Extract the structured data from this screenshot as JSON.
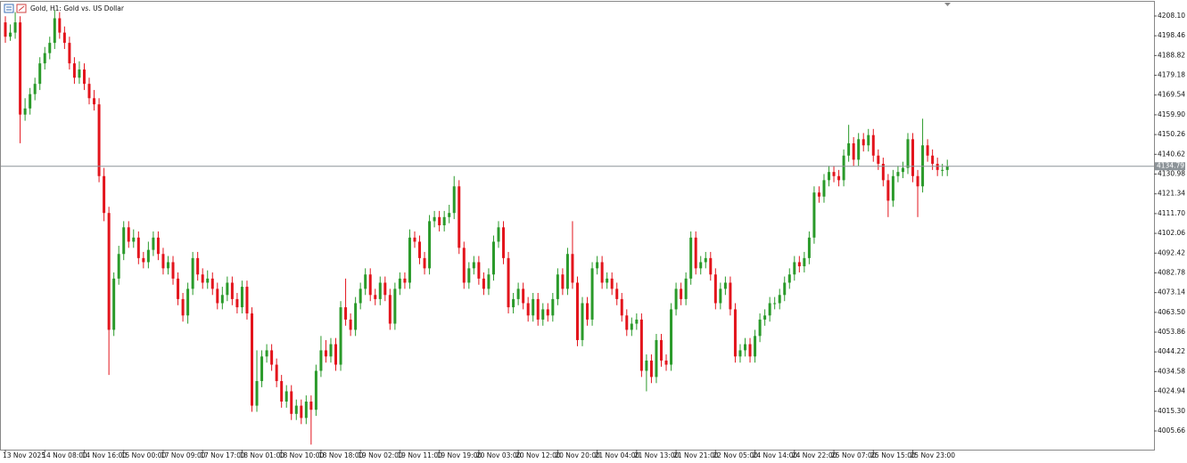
{
  "chart_data": {
    "type": "candlestick",
    "title": "Gold, H1:  Gold vs. US Dollar",
    "up_color": "#2a9a2a",
    "down_color": "#e3141c",
    "price_line_color": "#8c9398",
    "ylim": [
      3996.54,
      4215.04
    ],
    "yticks": [
      4005.66,
      {
        "value": 4015.3,
        "label": "4015.30"
      },
      4024.94,
      4034.58,
      4044.22,
      4053.86,
      {
        "value": 4063.5,
        "label": "4063.50"
      },
      4073.14,
      4082.78,
      4092.42,
      4102.06,
      {
        "value": 4111.7,
        "label": "4111.70"
      },
      4121.34,
      4130.98,
      4140.62,
      4150.26,
      {
        "value": 4159.9,
        "label": "4159.90"
      },
      4169.54,
      4179.18,
      4188.82,
      4198.46,
      {
        "value": 4208.1,
        "label": "4208.10"
      }
    ],
    "current_price": 4134.79,
    "categories": [
      "13 Nov 2025",
      null,
      null,
      null,
      null,
      null,
      null,
      null,
      "14 Nov 08:00",
      null,
      null,
      null,
      null,
      null,
      null,
      null,
      "14 Nov 16:00",
      null,
      null,
      null,
      null,
      null,
      null,
      null,
      "15 Nov 00:00",
      null,
      null,
      null,
      null,
      null,
      null,
      null,
      "17 Nov 09:00",
      null,
      null,
      null,
      null,
      null,
      null,
      null,
      "17 Nov 17:00",
      null,
      null,
      null,
      null,
      null,
      null,
      null,
      "18 Nov 01:00",
      null,
      null,
      null,
      null,
      null,
      null,
      null,
      "18 Nov 10:00",
      null,
      null,
      null,
      null,
      null,
      null,
      null,
      "18 Nov 18:00",
      null,
      null,
      null,
      null,
      null,
      null,
      null,
      "19 Nov 02:00",
      null,
      null,
      null,
      null,
      null,
      null,
      null,
      "19 Nov 11:00",
      null,
      null,
      null,
      null,
      null,
      null,
      null,
      "19 Nov 19:00",
      null,
      null,
      null,
      null,
      null,
      null,
      null,
      "20 Nov 03:00",
      null,
      null,
      null,
      null,
      null,
      null,
      null,
      "20 Nov 12:00",
      null,
      null,
      null,
      null,
      null,
      null,
      null,
      "20 Nov 20:00",
      null,
      null,
      null,
      null,
      null,
      null,
      null,
      "21 Nov 04:00",
      null,
      null,
      null,
      null,
      null,
      null,
      null,
      "21 Nov 13:00",
      null,
      null,
      null,
      null,
      null,
      null,
      null,
      "21 Nov 21:00",
      null,
      null,
      null,
      null,
      null,
      null,
      null,
      "22 Nov 05:00",
      null,
      null,
      null,
      null,
      null,
      null,
      null,
      "24 Nov 14:00",
      null,
      null,
      null,
      null,
      null,
      null,
      null,
      "24 Nov 22:00",
      null,
      null,
      null,
      null,
      null,
      null,
      null,
      "25 Nov 07:00",
      null,
      null,
      null,
      null,
      null,
      null,
      null,
      "25 Nov 15:00",
      null,
      null,
      null,
      null,
      null,
      null,
      null,
      "25 Nov 23:00",
      null,
      null,
      null,
      null,
      null,
      null,
      null
    ],
    "open": [
      4205,
      4198,
      4200,
      4205,
      4160,
      4163,
      4170,
      4175,
      4185,
      4190,
      4195,
      4207,
      4200,
      4195,
      4185,
      4178,
      4182,
      4175,
      4168,
      4165,
      4130,
      4112,
      4055,
      4080,
      4092,
      4105,
      4098,
      4100,
      4090,
      4088,
      4094,
      4100,
      4092,
      4085,
      4088,
      4080,
      4070,
      4062,
      4075,
      4090,
      4082,
      4078,
      4080,
      4075,
      4068,
      4072,
      4078,
      4070,
      4066,
      4076,
      4063,
      4018,
      4030,
      4042,
      4045,
      4038,
      4030,
      4020,
      4025,
      4014,
      4018,
      4012,
      4020,
      4016,
      4035,
      4045,
      4042,
      4048,
      4038,
      4066,
      4060,
      4055,
      4068,
      4075,
      4082,
      4072,
      4070,
      4078,
      4072,
      4058,
      4075,
      4080,
      4078,
      4100,
      4098,
      4090,
      4085,
      4108,
      4110,
      4106,
      4110,
      4112,
      4125,
      4095,
      4078,
      4085,
      4088,
      4080,
      4075,
      4082,
      4098,
      4105,
      4090,
      4066,
      4070,
      4075,
      4068,
      4062,
      4070,
      4060,
      4065,
      4062,
      4070,
      4082,
      4075,
      4092,
      4078,
      4050,
      4068,
      4060,
      4085,
      4088,
      4078,
      4080,
      4075,
      4070,
      4062,
      4055,
      4058,
      4060,
      4035,
      4040,
      4032,
      4050,
      4040,
      4038,
      4065,
      4075,
      4070,
      4080,
      4100,
      4085,
      4088,
      4090,
      4082,
      4068,
      4075,
      4078,
      4065,
      4042,
      4045,
      4048,
      4042,
      4052,
      4060,
      4062,
      4068,
      4068,
      4072,
      4078,
      4082,
      4088,
      4086,
      4090,
      4100,
      4122,
      4120,
      4128,
      4132,
      4130,
      4128,
      4140,
      4146,
      4138,
      4148,
      4145,
      4150,
      4140,
      4136,
      4128,
      4118,
      4130,
      4132,
      4134,
      4148,
      4130,
      4125,
      4145,
      4140,
      4136,
      4133,
      4133
    ],
    "high": [
      4208,
      4204,
      4210,
      4208,
      4168,
      4173,
      4178,
      4188,
      4193,
      4198,
      4211,
      4210,
      4203,
      4198,
      4188,
      4186,
      4185,
      4178,
      4172,
      4168,
      4134,
      4115,
      4083,
      4096,
      4108,
      4108,
      4104,
      4103,
      4093,
      4098,
      4103,
      4103,
      4095,
      4091,
      4091,
      4083,
      4073,
      4078,
      4093,
      4093,
      4085,
      4084,
      4083,
      4078,
      4076,
      4081,
      4081,
      4073,
      4079,
      4079,
      4066,
      4045,
      4045,
      4048,
      4048,
      4041,
      4033,
      4028,
      4028,
      4021,
      4021,
      4023,
      4023,
      4038,
      4052,
      4050,
      4051,
      4051,
      4069,
      4080,
      4063,
      4071,
      4078,
      4085,
      4085,
      4075,
      4081,
      4081,
      4075,
      4078,
      4083,
      4083,
      4104,
      4103,
      4101,
      4093,
      4111,
      4113,
      4113,
      4113,
      4116,
      4130,
      4128,
      4098,
      4088,
      4091,
      4091,
      4083,
      4085,
      4101,
      4108,
      4108,
      4093,
      4073,
      4078,
      4078,
      4071,
      4073,
      4073,
      4068,
      4068,
      4073,
      4085,
      4085,
      4095,
      4108,
      4081,
      4071,
      4071,
      4088,
      4091,
      4091,
      4083,
      4083,
      4078,
      4073,
      4065,
      4061,
      4063,
      4063,
      4043,
      4043,
      4053,
      4053,
      4043,
      4068,
      4078,
      4078,
      4083,
      4103,
      4103,
      4091,
      4093,
      4093,
      4085,
      4078,
      4081,
      4081,
      4068,
      4048,
      4051,
      4051,
      4055,
      4063,
      4065,
      4071,
      4071,
      4075,
      4081,
      4085,
      4091,
      4091,
      4093,
      4103,
      4125,
      4125,
      4131,
      4135,
      4135,
      4133,
      4143,
      4155,
      4149,
      4151,
      4151,
      4153,
      4153,
      4143,
      4139,
      4131,
      4133,
      4135,
      4137,
      4151,
      4151,
      4133,
      4158,
      4148,
      4143,
      4139,
      4136,
      4138
    ],
    "low": [
      4195,
      4196,
      4197,
      4146,
      4157,
      4160,
      4167,
      4172,
      4182,
      4187,
      4192,
      4197,
      4192,
      4182,
      4175,
      4175,
      4172,
      4165,
      4162,
      4127,
      4108,
      4033,
      4052,
      4077,
      4089,
      4095,
      4095,
      4087,
      4085,
      4085,
      4091,
      4089,
      4082,
      4082,
      4077,
      4067,
      4059,
      4058,
      4072,
      4079,
      4075,
      4075,
      4072,
      4065,
      4065,
      4069,
      4067,
      4063,
      4063,
      4060,
      4015,
      4015,
      4027,
      4039,
      4035,
      4027,
      4017,
      4017,
      4011,
      4011,
      4009,
      4009,
      3999,
      4013,
      4032,
      4039,
      4039,
      4035,
      4035,
      4057,
      4052,
      4052,
      4065,
      4072,
      4069,
      4067,
      4067,
      4069,
      4055,
      4055,
      4072,
      4075,
      4075,
      4095,
      4087,
      4082,
      4082,
      4105,
      4103,
      4103,
      4107,
      4109,
      4092,
      4075,
      4075,
      4082,
      4077,
      4072,
      4072,
      4079,
      4095,
      4087,
      4063,
      4063,
      4067,
      4065,
      4059,
      4059,
      4057,
      4057,
      4059,
      4059,
      4067,
      4072,
      4072,
      4075,
      4047,
      4047,
      4057,
      4057,
      4082,
      4075,
      4075,
      4072,
      4067,
      4059,
      4052,
      4052,
      4055,
      4032,
      4025,
      4029,
      4029,
      4037,
      4035,
      4035,
      4062,
      4067,
      4067,
      4077,
      4082,
      4082,
      4085,
      4079,
      4065,
      4065,
      4072,
      4062,
      4039,
      4039,
      4042,
      4039,
      4039,
      4049,
      4057,
      4059,
      4065,
      4065,
      4069,
      4075,
      4079,
      4083,
      4083,
      4087,
      4097,
      4117,
      4117,
      4125,
      4127,
      4125,
      4125,
      4137,
      4135,
      4135,
      4142,
      4142,
      4137,
      4133,
      4125,
      4110,
      4115,
      4127,
      4129,
      4131,
      4127,
      4110,
      4122,
      4137,
      4133,
      4130,
      4130,
      4130
    ],
    "close": [
      4198,
      4200,
      4205,
      4160,
      4163,
      4170,
      4175,
      4185,
      4190,
      4195,
      4207,
      4200,
      4195,
      4185,
      4178,
      4182,
      4175,
      4168,
      4165,
      4130,
      4112,
      4055,
      4080,
      4092,
      4105,
      4098,
      4100,
      4090,
      4088,
      4094,
      4100,
      4092,
      4085,
      4088,
      4080,
      4070,
      4062,
      4075,
      4090,
      4082,
      4078,
      4080,
      4075,
      4068,
      4072,
      4078,
      4070,
      4066,
      4076,
      4063,
      4018,
      4030,
      4042,
      4045,
      4038,
      4030,
      4020,
      4025,
      4014,
      4018,
      4012,
      4020,
      4016,
      4035,
      4045,
      4042,
      4048,
      4038,
      4066,
      4060,
      4055,
      4068,
      4075,
      4082,
      4072,
      4070,
      4078,
      4072,
      4058,
      4075,
      4080,
      4078,
      4100,
      4098,
      4090,
      4085,
      4108,
      4110,
      4106,
      4110,
      4112,
      4125,
      4095,
      4078,
      4085,
      4088,
      4080,
      4075,
      4082,
      4098,
      4105,
      4090,
      4066,
      4070,
      4075,
      4068,
      4062,
      4070,
      4060,
      4065,
      4062,
      4070,
      4082,
      4075,
      4092,
      4078,
      4050,
      4068,
      4060,
      4085,
      4088,
      4078,
      4080,
      4075,
      4070,
      4062,
      4055,
      4058,
      4060,
      4035,
      4040,
      4032,
      4050,
      4040,
      4038,
      4065,
      4075,
      4070,
      4080,
      4100,
      4085,
      4088,
      4090,
      4082,
      4068,
      4075,
      4078,
      4065,
      4042,
      4045,
      4048,
      4042,
      4052,
      4060,
      4062,
      4068,
      4068,
      4072,
      4078,
      4082,
      4088,
      4086,
      4090,
      4100,
      4122,
      4120,
      4128,
      4132,
      4130,
      4128,
      4140,
      4146,
      4138,
      4148,
      4145,
      4150,
      4140,
      4136,
      4128,
      4118,
      4130,
      4132,
      4134,
      4148,
      4130,
      4125,
      4145,
      4140,
      4136,
      4133,
      4133,
      4134.79
    ]
  }
}
